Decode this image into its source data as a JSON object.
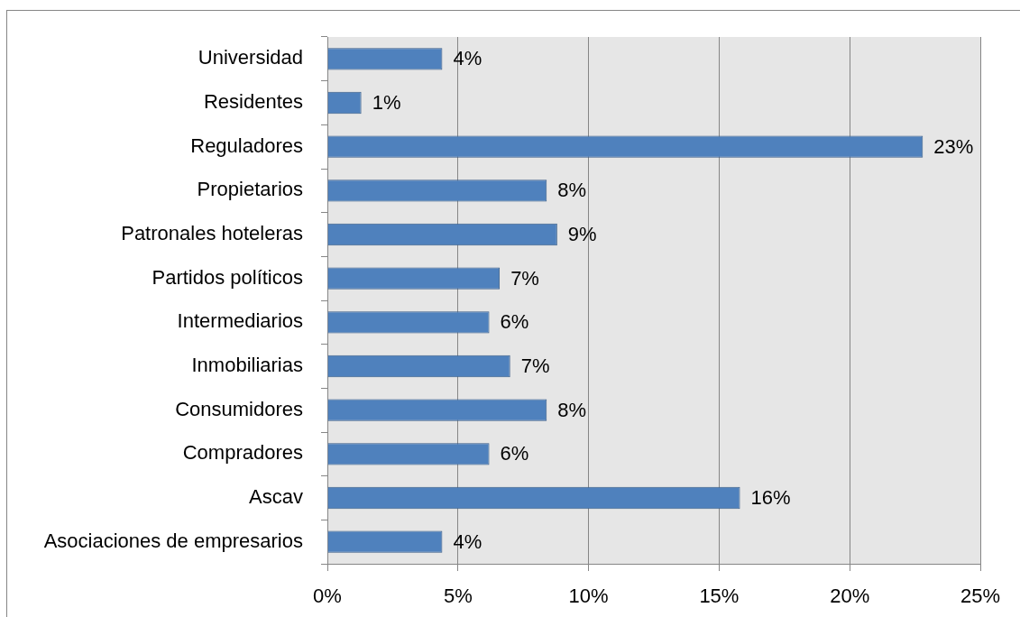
{
  "chart_data": {
    "type": "bar",
    "orientation": "horizontal",
    "categories": [
      "Universidad",
      "Residentes",
      "Reguladores",
      "Propietarios",
      "Patronales hoteleras",
      "Partidos políticos",
      "Intermediarios",
      "Inmobiliarias",
      "Consumidores",
      "Compradores",
      "Ascav",
      "Asociaciones de empresarios"
    ],
    "values": [
      4.4,
      1.3,
      22.8,
      8.4,
      8.8,
      6.6,
      6.2,
      7.0,
      8.4,
      6.2,
      15.8,
      4.4
    ],
    "value_labels": [
      "4%",
      "1%",
      "23%",
      "8%",
      "9%",
      "7%",
      "6%",
      "7%",
      "8%",
      "6%",
      "16%",
      "4%"
    ],
    "color": "#4f81bd",
    "xlim": [
      0,
      25
    ],
    "xticks": [
      {
        "value": 0,
        "label": "0%"
      },
      {
        "value": 5,
        "label": "5%"
      },
      {
        "value": 10,
        "label": "10%"
      },
      {
        "value": 15,
        "label": "15%"
      },
      {
        "value": 20,
        "label": "20%"
      },
      {
        "value": 25,
        "label": "25%"
      }
    ],
    "grid": "x"
  }
}
